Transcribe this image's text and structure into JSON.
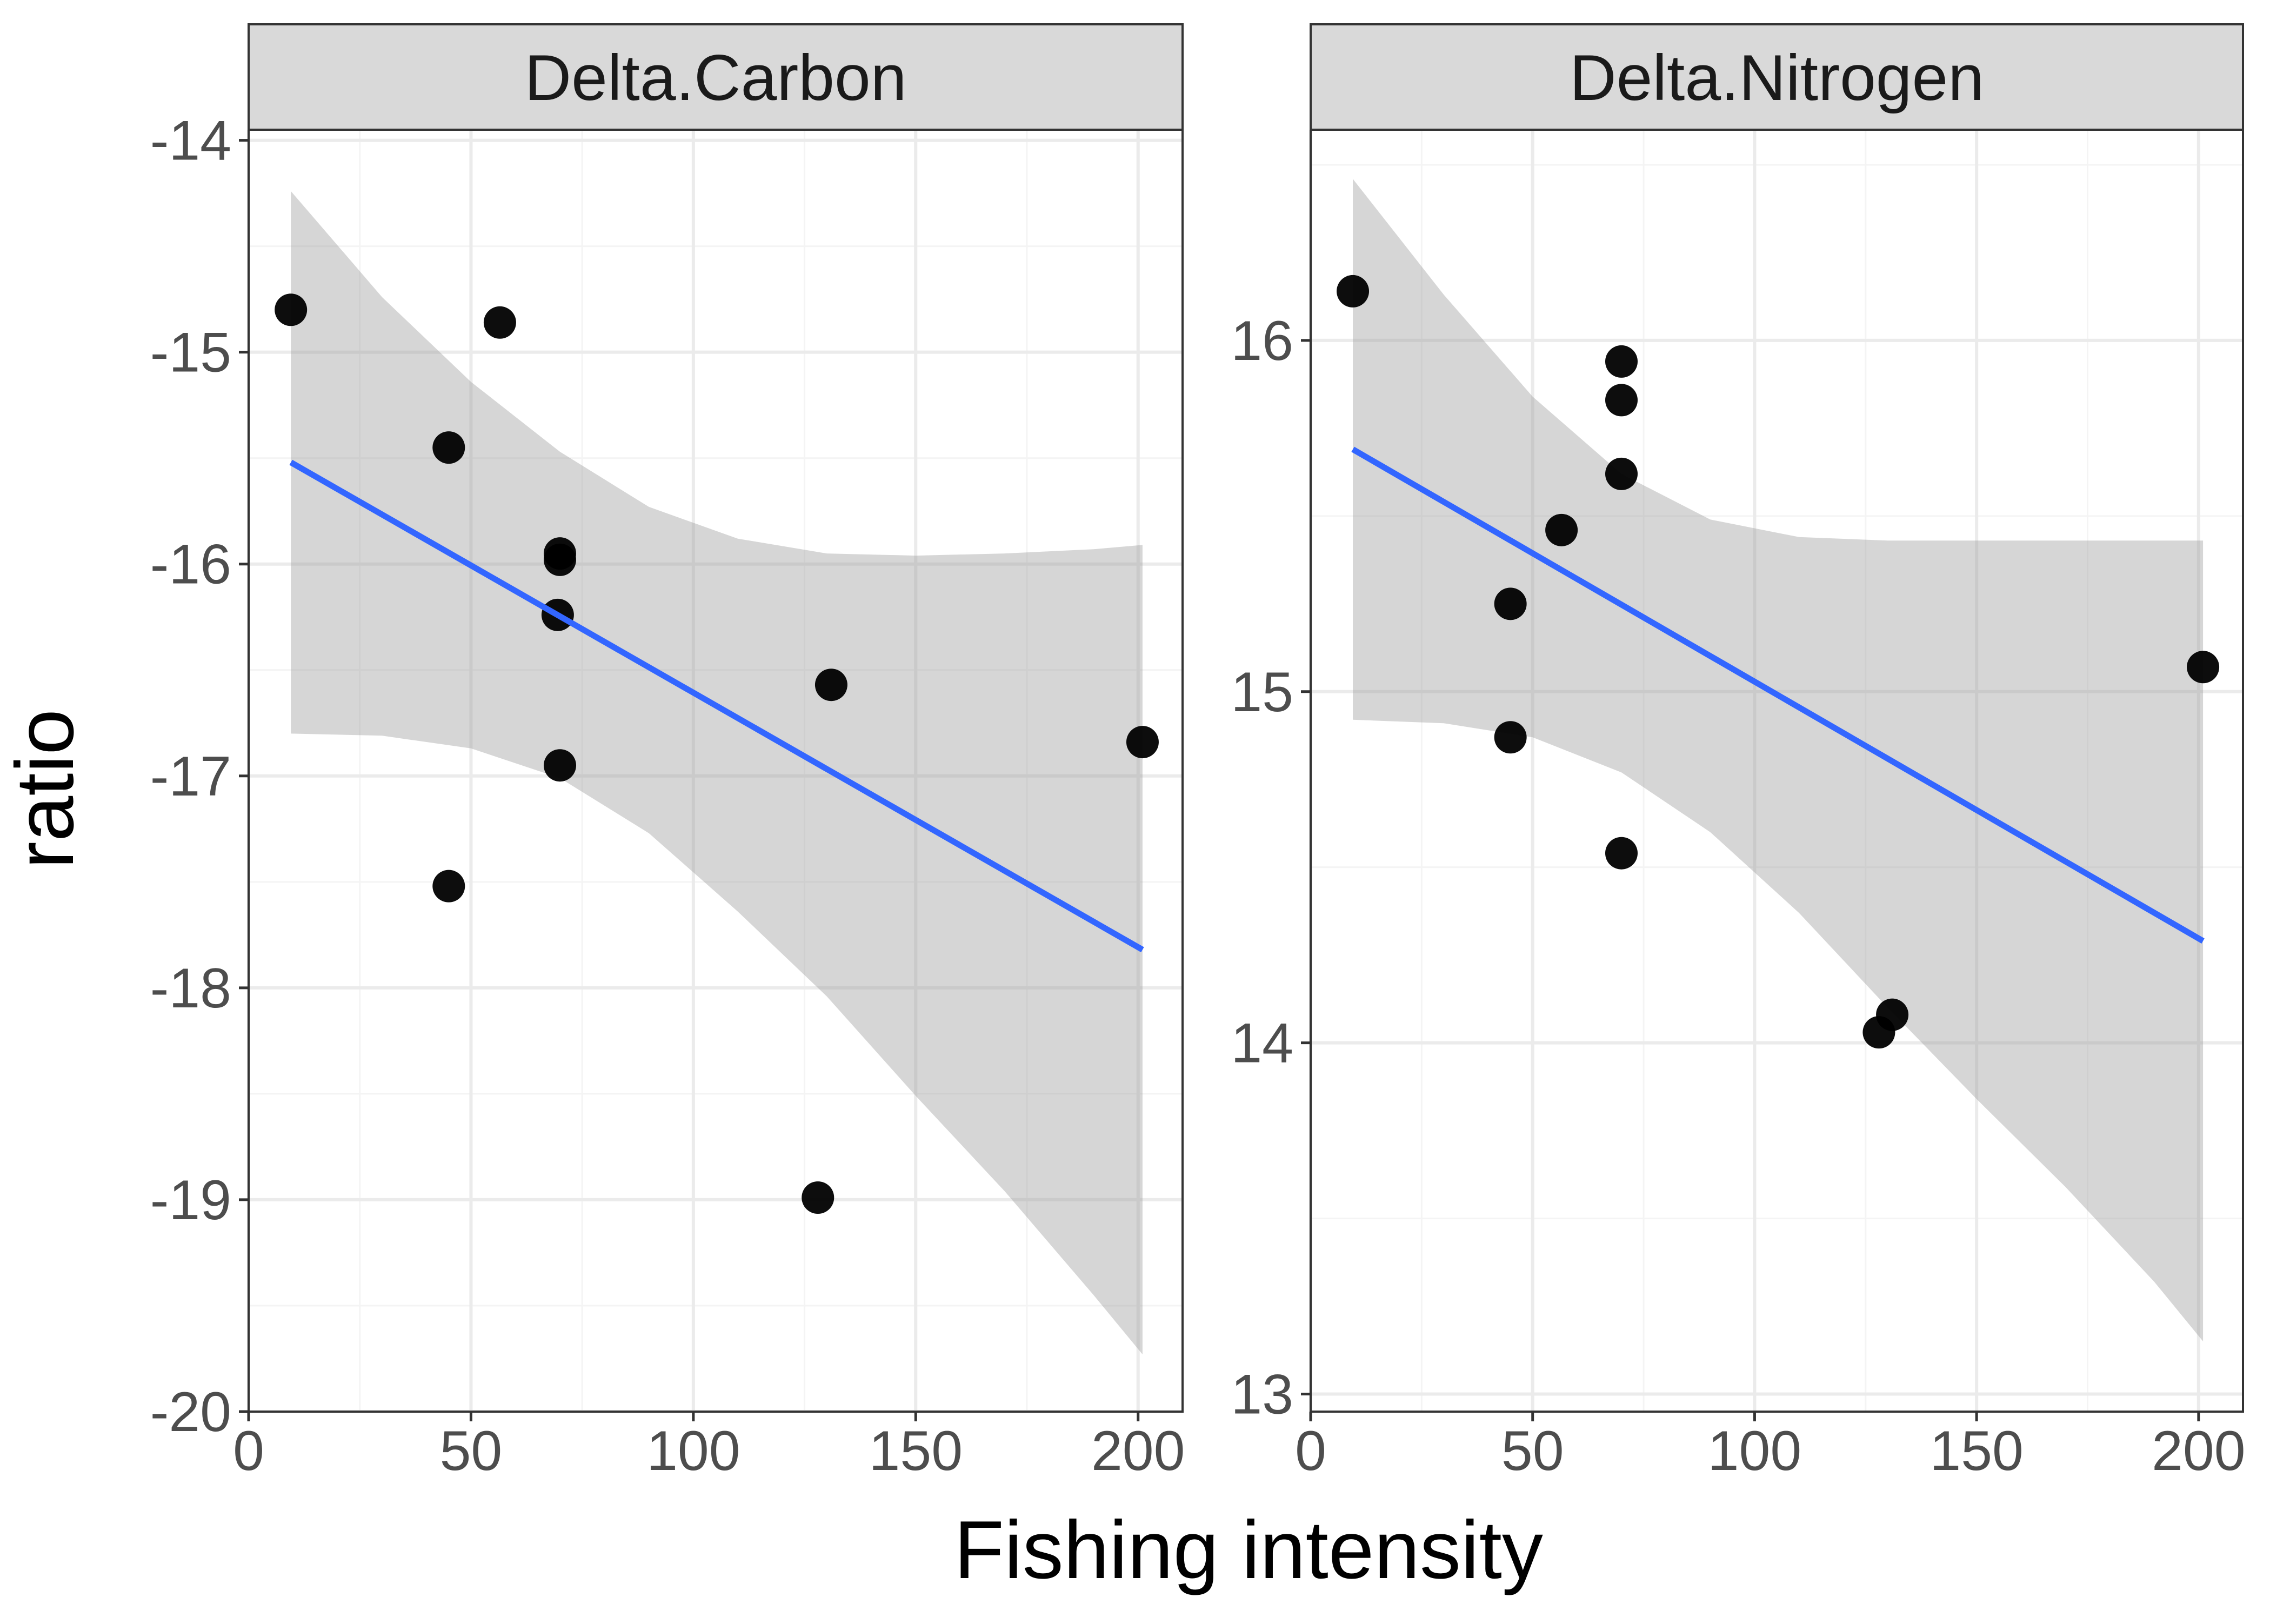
{
  "chart_data": {
    "type": "scatter",
    "xlabel": "Fishing intensity",
    "ylabel": "ratio",
    "grid": true,
    "legend": "none",
    "colors": {
      "point": "#000000",
      "trend": "#3366ff",
      "ribbon": "#999999",
      "strip": "#d9d9d9",
      "grid": "#ebebeb"
    },
    "panels": [
      {
        "title": "Delta.Carbon",
        "xlim": [
          0,
          210
        ],
        "ylim": [
          -20,
          -13.95
        ],
        "x_ticks": [
          0,
          50,
          100,
          150,
          200
        ],
        "y_ticks": [
          -20,
          -19,
          -18,
          -17,
          -16,
          -15,
          -14
        ],
        "x_tick_labels": [
          "0",
          "50",
          "100",
          "150",
          "200"
        ],
        "y_tick_labels": [
          "-20",
          "-19",
          "-18",
          "-17",
          "-16",
          "-15",
          "-14"
        ],
        "points": [
          {
            "x": 9.5,
            "y": -14.8
          },
          {
            "x": 56.5,
            "y": -14.86
          },
          {
            "x": 45,
            "y": -15.45
          },
          {
            "x": 70,
            "y": -15.95
          },
          {
            "x": 70,
            "y": -15.98
          },
          {
            "x": 69.5,
            "y": -16.24
          },
          {
            "x": 70,
            "y": -16.95
          },
          {
            "x": 45,
            "y": -17.52
          },
          {
            "x": 131,
            "y": -16.57
          },
          {
            "x": 201,
            "y": -16.84
          },
          {
            "x": 128,
            "y": -18.99
          }
        ],
        "trend": {
          "x": [
            9.5,
            201
          ],
          "y": [
            -15.52,
            -17.82
          ]
        },
        "ribbon": {
          "x": [
            9.5,
            30,
            50,
            70,
            90,
            110,
            130,
            150,
            170,
            190,
            201
          ],
          "upper": [
            -14.24,
            -14.74,
            -15.14,
            -15.47,
            -15.73,
            -15.88,
            -15.95,
            -15.96,
            -15.95,
            -15.93,
            -15.91
          ],
          "lower": [
            -16.8,
            -16.81,
            -16.87,
            -17.01,
            -17.27,
            -17.64,
            -18.04,
            -18.51,
            -18.96,
            -19.45,
            -19.73
          ]
        }
      },
      {
        "title": "Delta.Nitrogen",
        "xlim": [
          0,
          210
        ],
        "ylim": [
          12.95,
          16.6
        ],
        "x_ticks": [
          0,
          50,
          100,
          150,
          200
        ],
        "y_ticks": [
          13,
          14,
          15,
          16
        ],
        "x_tick_labels": [
          "0",
          "50",
          "100",
          "150",
          "200"
        ],
        "y_tick_labels": [
          "13",
          "14",
          "15",
          "16"
        ],
        "points": [
          {
            "x": 9.5,
            "y": 16.14
          },
          {
            "x": 70,
            "y": 15.94
          },
          {
            "x": 70,
            "y": 15.83
          },
          {
            "x": 70,
            "y": 15.62
          },
          {
            "x": 56.5,
            "y": 15.46
          },
          {
            "x": 45,
            "y": 15.25
          },
          {
            "x": 45,
            "y": 14.87
          },
          {
            "x": 70,
            "y": 14.54
          },
          {
            "x": 201,
            "y": 15.07
          },
          {
            "x": 128,
            "y": 14.03
          },
          {
            "x": 131,
            "y": 14.08
          }
        ],
        "trend": {
          "x": [
            9.5,
            201
          ],
          "y": [
            15.69,
            14.29
          ]
        },
        "ribbon": {
          "x": [
            9.5,
            30,
            50,
            70,
            90,
            110,
            130,
            150,
            170,
            190,
            201
          ],
          "upper": [
            16.46,
            16.13,
            15.84,
            15.62,
            15.49,
            15.44,
            15.43,
            15.43,
            15.43,
            15.43,
            15.43
          ],
          "lower": [
            14.92,
            14.91,
            14.87,
            14.77,
            14.6,
            14.37,
            14.1,
            13.84,
            13.59,
            13.32,
            13.15
          ]
        }
      }
    ]
  }
}
